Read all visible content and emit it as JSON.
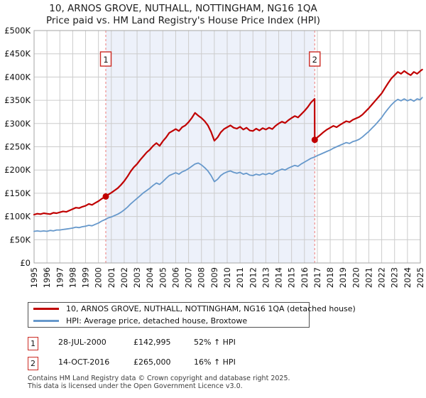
{
  "title": "10, ARNOS GROVE, NUTHALL, NOTTINGHAM, NG16 1QA",
  "subtitle": "Price paid vs. HM Land Registry's House Price Index (HPI)",
  "legend": [
    {
      "label": "10, ARNOS GROVE, NUTHALL, NOTTINGHAM, NG16 1QA (detached house)",
      "color": "#c00000"
    },
    {
      "label": "HPI: Average price, detached house, Broxtowe",
      "color": "#6698cb"
    }
  ],
  "transactions": [
    {
      "num": "1",
      "date": "28-JUL-2000",
      "price": "£142,995",
      "hpi": "52% ↑ HPI"
    },
    {
      "num": "2",
      "date": "14-OCT-2016",
      "price": "£265,000",
      "hpi": "16% ↑ HPI"
    }
  ],
  "footer": {
    "line1": "Contains HM Land Registry data © Crown copyright and database right 2025.",
    "line2": "This data is licensed under the Open Government Licence v3.0."
  },
  "chart_data": {
    "type": "line",
    "title": "10, ARNOS GROVE, NUTHALL, NOTTINGHAM, NG16 1QA",
    "subtitle": "Price paid vs. HM Land Registry's House Price Index (HPI)",
    "x_axis": {
      "min": 1995,
      "max": 2025,
      "tick_labels": [
        "1995",
        "1996",
        "1997",
        "1998",
        "1999",
        "2000",
        "2001",
        "2002",
        "2003",
        "2004",
        "2005",
        "2006",
        "2007",
        "2008",
        "2009",
        "2010",
        "2011",
        "2012",
        "2013",
        "2014",
        "2015",
        "2016",
        "2017",
        "2018",
        "2019",
        "2020",
        "2021",
        "2022",
        "2023",
        "2024",
        "2025"
      ]
    },
    "y_axis": {
      "min": 0,
      "max": 500000,
      "tick_values": [
        0,
        50000,
        100000,
        150000,
        200000,
        250000,
        300000,
        350000,
        400000,
        450000,
        500000
      ],
      "tick_labels": [
        "£0",
        "£50K",
        "£100K",
        "£150K",
        "£200K",
        "£250K",
        "£300K",
        "£350K",
        "£400K",
        "£450K",
        "£500K"
      ]
    },
    "grid": true,
    "legend_position": "bottom",
    "colors": {
      "grid": "#cccccc",
      "border": "#a6a6a6",
      "shade": "#edf1fa",
      "event_line": "#f0908e"
    },
    "shaded_region": {
      "from": 2000.57,
      "to": 2016.8
    },
    "markers": [
      {
        "label": "1",
        "year": 2000.57,
        "price": 142995
      },
      {
        "label": "2",
        "year": 2016.8,
        "price": 265000
      }
    ],
    "series": [
      {
        "name": "10, ARNOS GROVE, NUTHALL, NOTTINGHAM, NG16 1QA (detached house)",
        "color": "#c00000",
        "width": 2.2,
        "points": [
          [
            1995.0,
            104000
          ],
          [
            1995.25,
            106000
          ],
          [
            1995.5,
            105000
          ],
          [
            1995.75,
            107000
          ],
          [
            1996.0,
            106000
          ],
          [
            1996.25,
            105000
          ],
          [
            1996.5,
            108000
          ],
          [
            1996.75,
            107000
          ],
          [
            1997.0,
            109000
          ],
          [
            1997.25,
            111000
          ],
          [
            1997.5,
            110000
          ],
          [
            1997.75,
            113000
          ],
          [
            1998.0,
            116000
          ],
          [
            1998.25,
            119000
          ],
          [
            1998.5,
            118000
          ],
          [
            1998.75,
            121000
          ],
          [
            1999.0,
            123000
          ],
          [
            1999.25,
            127000
          ],
          [
            1999.5,
            125000
          ],
          [
            1999.75,
            129000
          ],
          [
            2000.0,
            133000
          ],
          [
            2000.25,
            138000
          ],
          [
            2000.57,
            142995
          ],
          [
            2000.75,
            147000
          ],
          [
            2001.0,
            151000
          ],
          [
            2001.25,
            156000
          ],
          [
            2001.5,
            161000
          ],
          [
            2001.75,
            168000
          ],
          [
            2002.0,
            176000
          ],
          [
            2002.25,
            186000
          ],
          [
            2002.5,
            197000
          ],
          [
            2002.75,
            206000
          ],
          [
            2003.0,
            213000
          ],
          [
            2003.25,
            222000
          ],
          [
            2003.5,
            230000
          ],
          [
            2003.75,
            238000
          ],
          [
            2004.0,
            244000
          ],
          [
            2004.25,
            252000
          ],
          [
            2004.5,
            258000
          ],
          [
            2004.75,
            252000
          ],
          [
            2005.0,
            262000
          ],
          [
            2005.25,
            270000
          ],
          [
            2005.5,
            280000
          ],
          [
            2005.75,
            284000
          ],
          [
            2006.0,
            288000
          ],
          [
            2006.25,
            284000
          ],
          [
            2006.5,
            292000
          ],
          [
            2006.75,
            296000
          ],
          [
            2007.0,
            303000
          ],
          [
            2007.25,
            312000
          ],
          [
            2007.5,
            323000
          ],
          [
            2007.75,
            317000
          ],
          [
            2008.0,
            312000
          ],
          [
            2008.25,
            305000
          ],
          [
            2008.5,
            296000
          ],
          [
            2008.75,
            282000
          ],
          [
            2009.0,
            263000
          ],
          [
            2009.25,
            270000
          ],
          [
            2009.5,
            281000
          ],
          [
            2009.75,
            288000
          ],
          [
            2010.0,
            292000
          ],
          [
            2010.25,
            296000
          ],
          [
            2010.5,
            291000
          ],
          [
            2010.75,
            289000
          ],
          [
            2011.0,
            293000
          ],
          [
            2011.25,
            287000
          ],
          [
            2011.5,
            291000
          ],
          [
            2011.75,
            285000
          ],
          [
            2012.0,
            284000
          ],
          [
            2012.25,
            289000
          ],
          [
            2012.5,
            285000
          ],
          [
            2012.75,
            290000
          ],
          [
            2013.0,
            287000
          ],
          [
            2013.25,
            291000
          ],
          [
            2013.5,
            288000
          ],
          [
            2013.75,
            295000
          ],
          [
            2014.0,
            300000
          ],
          [
            2014.25,
            304000
          ],
          [
            2014.5,
            301000
          ],
          [
            2014.75,
            307000
          ],
          [
            2015.0,
            312000
          ],
          [
            2015.25,
            316000
          ],
          [
            2015.5,
            313000
          ],
          [
            2015.75,
            320000
          ],
          [
            2016.0,
            327000
          ],
          [
            2016.25,
            335000
          ],
          [
            2016.5,
            345000
          ],
          [
            2016.79,
            353000
          ],
          [
            2016.8,
            265000
          ],
          [
            2017.0,
            270000
          ],
          [
            2017.25,
            276000
          ],
          [
            2017.5,
            282000
          ],
          [
            2017.75,
            287000
          ],
          [
            2018.0,
            291000
          ],
          [
            2018.25,
            295000
          ],
          [
            2018.5,
            292000
          ],
          [
            2018.75,
            297000
          ],
          [
            2019.0,
            301000
          ],
          [
            2019.25,
            305000
          ],
          [
            2019.5,
            303000
          ],
          [
            2019.75,
            308000
          ],
          [
            2020.0,
            311000
          ],
          [
            2020.25,
            314000
          ],
          [
            2020.5,
            319000
          ],
          [
            2020.75,
            326000
          ],
          [
            2021.0,
            333000
          ],
          [
            2021.25,
            341000
          ],
          [
            2021.5,
            349000
          ],
          [
            2021.75,
            357000
          ],
          [
            2022.0,
            365000
          ],
          [
            2022.25,
            376000
          ],
          [
            2022.5,
            387000
          ],
          [
            2022.75,
            397000
          ],
          [
            2023.0,
            404000
          ],
          [
            2023.25,
            411000
          ],
          [
            2023.5,
            407000
          ],
          [
            2023.75,
            413000
          ],
          [
            2024.0,
            408000
          ],
          [
            2024.25,
            404000
          ],
          [
            2024.5,
            411000
          ],
          [
            2024.75,
            407000
          ],
          [
            2025.0,
            413000
          ],
          [
            2025.15,
            416000
          ]
        ]
      },
      {
        "name": "HPI: Average price, detached house, Broxtowe",
        "color": "#6698cb",
        "width": 1.8,
        "points": [
          [
            1995.0,
            68000
          ],
          [
            1995.25,
            69000
          ],
          [
            1995.5,
            68000
          ],
          [
            1995.75,
            69000
          ],
          [
            1996.0,
            68000
          ],
          [
            1996.25,
            70000
          ],
          [
            1996.5,
            69000
          ],
          [
            1996.75,
            71000
          ],
          [
            1997.0,
            71000
          ],
          [
            1997.25,
            72000
          ],
          [
            1997.5,
            73000
          ],
          [
            1997.75,
            74000
          ],
          [
            1998.0,
            75000
          ],
          [
            1998.25,
            77000
          ],
          [
            1998.5,
            76000
          ],
          [
            1998.75,
            78000
          ],
          [
            1999.0,
            79000
          ],
          [
            1999.25,
            81000
          ],
          [
            1999.5,
            80000
          ],
          [
            1999.75,
            83000
          ],
          [
            2000.0,
            86000
          ],
          [
            2000.25,
            90000
          ],
          [
            2000.57,
            94000
          ],
          [
            2000.75,
            97000
          ],
          [
            2001.0,
            99000
          ],
          [
            2001.25,
            102000
          ],
          [
            2001.5,
            105000
          ],
          [
            2001.75,
            109000
          ],
          [
            2002.0,
            114000
          ],
          [
            2002.25,
            120000
          ],
          [
            2002.5,
            127000
          ],
          [
            2002.75,
            133000
          ],
          [
            2003.0,
            139000
          ],
          [
            2003.25,
            145000
          ],
          [
            2003.5,
            151000
          ],
          [
            2003.75,
            156000
          ],
          [
            2004.0,
            161000
          ],
          [
            2004.25,
            167000
          ],
          [
            2004.5,
            172000
          ],
          [
            2004.75,
            169000
          ],
          [
            2005.0,
            175000
          ],
          [
            2005.25,
            182000
          ],
          [
            2005.5,
            188000
          ],
          [
            2005.75,
            191000
          ],
          [
            2006.0,
            194000
          ],
          [
            2006.25,
            191000
          ],
          [
            2006.5,
            196000
          ],
          [
            2006.75,
            199000
          ],
          [
            2007.0,
            203000
          ],
          [
            2007.25,
            208000
          ],
          [
            2007.5,
            213000
          ],
          [
            2007.75,
            215000
          ],
          [
            2008.0,
            211000
          ],
          [
            2008.25,
            205000
          ],
          [
            2008.5,
            198000
          ],
          [
            2008.75,
            188000
          ],
          [
            2009.0,
            175000
          ],
          [
            2009.25,
            180000
          ],
          [
            2009.5,
            188000
          ],
          [
            2009.75,
            193000
          ],
          [
            2010.0,
            196000
          ],
          [
            2010.25,
            198000
          ],
          [
            2010.5,
            195000
          ],
          [
            2010.75,
            193000
          ],
          [
            2011.0,
            195000
          ],
          [
            2011.25,
            191000
          ],
          [
            2011.5,
            193000
          ],
          [
            2011.75,
            189000
          ],
          [
            2012.0,
            188000
          ],
          [
            2012.25,
            191000
          ],
          [
            2012.5,
            189000
          ],
          [
            2012.75,
            192000
          ],
          [
            2013.0,
            190000
          ],
          [
            2013.25,
            193000
          ],
          [
            2013.5,
            191000
          ],
          [
            2013.75,
            196000
          ],
          [
            2014.0,
            199000
          ],
          [
            2014.25,
            202000
          ],
          [
            2014.5,
            200000
          ],
          [
            2014.75,
            204000
          ],
          [
            2015.0,
            207000
          ],
          [
            2015.25,
            210000
          ],
          [
            2015.5,
            208000
          ],
          [
            2015.75,
            213000
          ],
          [
            2016.0,
            217000
          ],
          [
            2016.25,
            221000
          ],
          [
            2016.5,
            225000
          ],
          [
            2016.8,
            228000
          ],
          [
            2017.0,
            231000
          ],
          [
            2017.25,
            234000
          ],
          [
            2017.5,
            237000
          ],
          [
            2017.75,
            240000
          ],
          [
            2018.0,
            243000
          ],
          [
            2018.25,
            247000
          ],
          [
            2018.5,
            250000
          ],
          [
            2018.75,
            253000
          ],
          [
            2019.0,
            256000
          ],
          [
            2019.25,
            259000
          ],
          [
            2019.5,
            257000
          ],
          [
            2019.75,
            261000
          ],
          [
            2020.0,
            263000
          ],
          [
            2020.25,
            266000
          ],
          [
            2020.5,
            271000
          ],
          [
            2020.75,
            277000
          ],
          [
            2021.0,
            283000
          ],
          [
            2021.25,
            290000
          ],
          [
            2021.5,
            297000
          ],
          [
            2021.75,
            305000
          ],
          [
            2022.0,
            313000
          ],
          [
            2022.25,
            323000
          ],
          [
            2022.5,
            332000
          ],
          [
            2022.75,
            340000
          ],
          [
            2023.0,
            347000
          ],
          [
            2023.25,
            352000
          ],
          [
            2023.5,
            349000
          ],
          [
            2023.75,
            353000
          ],
          [
            2024.0,
            349000
          ],
          [
            2024.25,
            352000
          ],
          [
            2024.5,
            348000
          ],
          [
            2024.75,
            353000
          ],
          [
            2025.0,
            351000
          ],
          [
            2025.15,
            356000
          ]
        ]
      }
    ]
  }
}
